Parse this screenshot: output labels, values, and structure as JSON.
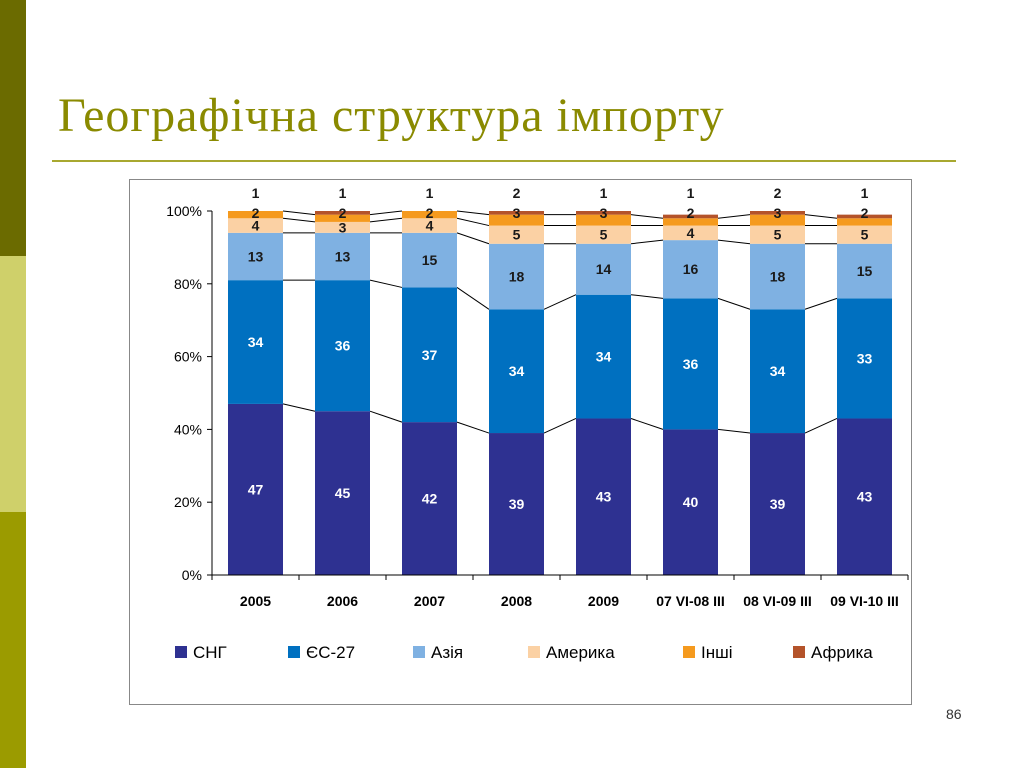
{
  "slide": {
    "title": "Географічна структура імпорту",
    "page_number": "86"
  },
  "colors": {
    "СНГ": "#2e3191",
    "ЄС-27": "#0070c0",
    "Азія": "#7fb1e2",
    "Америка": "#fbd1a4",
    "Інші": "#f59a1e",
    "Африка": "#b4532a"
  },
  "chart_data": {
    "type": "bar",
    "stacked": true,
    "normalized": true,
    "title": "",
    "xlabel": "",
    "ylabel": "",
    "ylim": [
      0,
      100
    ],
    "y_ticks": [
      "0%",
      "20%",
      "40%",
      "60%",
      "80%",
      "100%"
    ],
    "categories": [
      "2005",
      "2006",
      "2007",
      "2008",
      "2009",
      "07 VI-08 III",
      "08 VI-09 III",
      "09 VI-10 III"
    ],
    "series": [
      {
        "name": "СНГ",
        "values": [
          47,
          45,
          42,
          39,
          43,
          40,
          39,
          43
        ]
      },
      {
        "name": "ЄС-27",
        "values": [
          34,
          36,
          37,
          34,
          34,
          36,
          34,
          33
        ]
      },
      {
        "name": "Азія",
        "values": [
          13,
          13,
          15,
          18,
          14,
          16,
          18,
          15
        ]
      },
      {
        "name": "Америка",
        "values": [
          4,
          3,
          4,
          5,
          5,
          4,
          5,
          5
        ]
      },
      {
        "name": "Інші",
        "values": [
          2,
          2,
          2,
          3,
          3,
          2,
          3,
          2
        ]
      },
      {
        "name": "Африка",
        "values": [
          1,
          1,
          1,
          2,
          1,
          1,
          2,
          1
        ]
      }
    ],
    "legend": {
      "position": "bottom",
      "entries": [
        "СНГ",
        "ЄС-27",
        "Азія",
        "Америка",
        "Інші",
        "Африка"
      ]
    }
  }
}
